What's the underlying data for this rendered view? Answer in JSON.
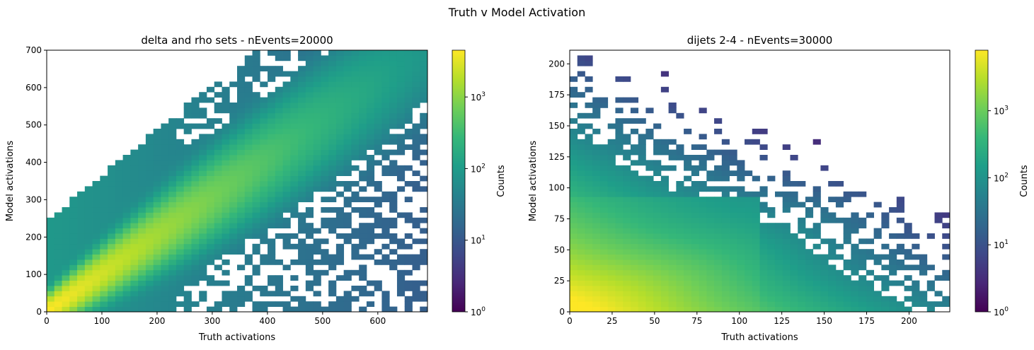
{
  "suptitle": "Truth v Model Activation",
  "colorscale": [
    "#440154",
    "#482878",
    "#3e4989",
    "#31688e",
    "#26828e",
    "#1f9e89",
    "#35b779",
    "#6ece58",
    "#b5de2b",
    "#fde725"
  ],
  "chart_data": [
    {
      "type": "heatmap",
      "title": "delta and rho sets - nEvents=20000",
      "xlabel": "Truth activations",
      "ylabel": "Model activations",
      "xlim": [
        0,
        690
      ],
      "ylim": [
        0,
        700
      ],
      "xticks": [
        0,
        100,
        200,
        300,
        400,
        500,
        600
      ],
      "yticks": [
        0,
        100,
        200,
        300,
        400,
        500,
        600,
        700
      ],
      "bin_width": 13.8,
      "bin_height": 14,
      "diagonal_slope": 1.0,
      "spread": 0.28,
      "max_count": 4500,
      "colorbar": {
        "label": "Counts",
        "scale": "log",
        "ticks": [
          "10^0",
          "10^1",
          "10^2",
          "10^3"
        ],
        "range": [
          1,
          4500
        ]
      }
    },
    {
      "type": "heatmap",
      "title": "dijets 2-4 - nEvents=30000",
      "xlabel": "Truth activations",
      "ylabel": "Model activations",
      "xlim": [
        0,
        224
      ],
      "ylim": [
        0,
        211
      ],
      "xticks": [
        0,
        25,
        50,
        75,
        100,
        125,
        150,
        175,
        200
      ],
      "yticks": [
        0,
        25,
        50,
        75,
        100,
        125,
        150,
        175,
        200
      ],
      "bin_width": 4.48,
      "bin_height": 4.22,
      "diagonal_slope": 0.55,
      "spread": 0.45,
      "max_count": 8000,
      "colorbar": {
        "label": "Counts",
        "scale": "log",
        "ticks": [
          "10^0",
          "10^1",
          "10^2",
          "10^3"
        ],
        "range": [
          1,
          8000
        ]
      }
    }
  ]
}
